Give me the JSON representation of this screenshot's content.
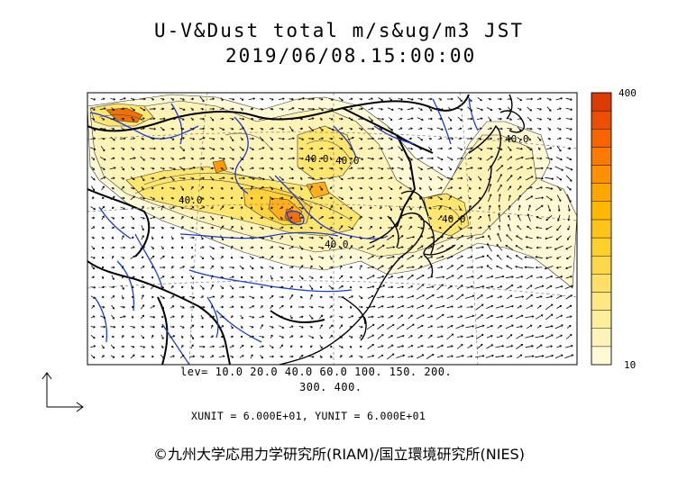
{
  "title": {
    "line1": "U-V&Dust total m/s&ug/m3 JST",
    "line2": "2019/06/08.15:00:00"
  },
  "contour_labels": [
    "40.0",
    "40.0",
    "40.0",
    "40.0",
    "40.0",
    "40.0"
  ],
  "legend": {
    "levels_line1": "lev= 10.0 20.0 40.0 60.0 100. 150. 200.",
    "levels_line2": "300. 400."
  },
  "units": "XUNIT = 6.000E+01, YUNIT = 6.000E+01",
  "colorbar": {
    "max_label": "400",
    "min_label": "10",
    "colors": [
      "#fff9d6",
      "#fff3b8",
      "#ffee9c",
      "#ffe882",
      "#ffe066",
      "#ffd84a",
      "#ffcf2e",
      "#ffc41a",
      "#ffb800",
      "#ffa600",
      "#ff9000",
      "#ff7a00",
      "#f56400",
      "#ea5000",
      "#dd3c00"
    ]
  },
  "copyright": "©九州大学応用力学研究所(RIAM)/国立環境研究所(NIES)"
}
